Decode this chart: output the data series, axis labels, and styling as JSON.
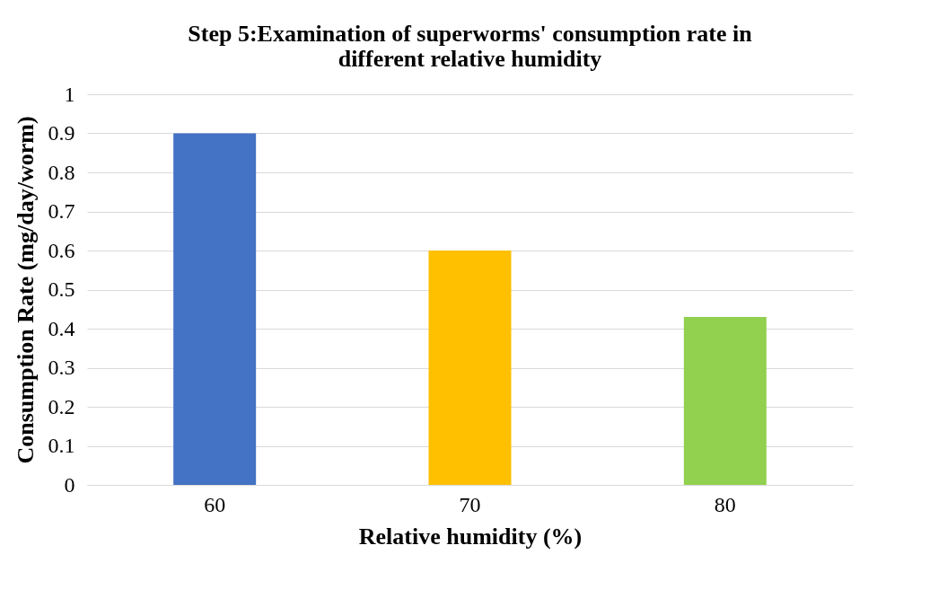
{
  "chart_data": {
    "type": "bar",
    "title": [
      "Step 5:Examination of superworms' consumption rate in",
      "different relative humidity"
    ],
    "xlabel": "Relative humidity (%)",
    "ylabel": "Consumption Rate (mg/day/worm)",
    "categories": [
      "60",
      "70",
      "80"
    ],
    "values": [
      0.9,
      0.6,
      0.43
    ],
    "colors": [
      "#4472c4",
      "#ffc000",
      "#92d050"
    ],
    "ylim": [
      0,
      1
    ],
    "yticks": [
      0,
      0.1,
      0.2,
      0.3,
      0.4,
      0.5,
      0.6,
      0.7,
      0.8,
      0.9,
      1
    ],
    "grid": "y",
    "legend": false
  }
}
